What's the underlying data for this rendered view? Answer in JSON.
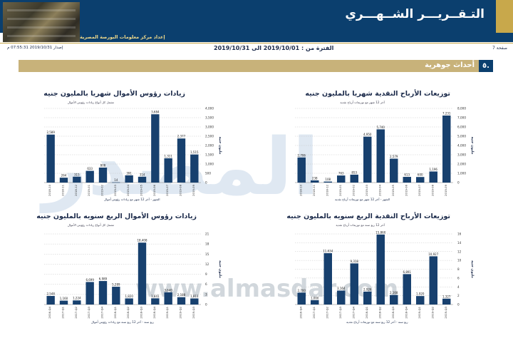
{
  "header": {
    "title": "التـقــريـــر الشــهـــري",
    "subtitle": "إعداد مركز معلومات البورصة المصرية"
  },
  "meta": {
    "page": "صفحة 7",
    "period": "الفترة من : 2019/10/01 الى 2019/10/31",
    "issue": "إصدار 2019/10/31 07:55:31 م"
  },
  "section": {
    "number": "٥.",
    "title": "أحداث جوهرية"
  },
  "watermark": {
    "text": "المصدر",
    "url": "www.almasdar.com"
  },
  "colors": {
    "navy": "#0b3f6e",
    "gold": "#c8a84b",
    "bar": "#17406e",
    "grid": "#bdbdbd"
  },
  "chart_data": [
    {
      "type": "bar",
      "title": "توزيعات الأرباح النقدية شهريا بالمليون جنيه",
      "subtitle": "آخر 12 شهر مع توزيعات أرباح نقدية",
      "xlabel": "الشهر - آخر 12 شهر مع توزيعات أرباح نقدية",
      "ylabel": "مليون جنيه",
      "ylim": [
        0,
        8000
      ],
      "yticks": [
        "0",
        "1,000",
        "2,000",
        "3,000",
        "4,000",
        "5,000",
        "6,000",
        "7,000",
        "8,000"
      ],
      "categories": [
        "2018-10",
        "2018-11",
        "2018-12",
        "2019-01",
        "2019-02",
        "2019-03",
        "2019-04",
        "2019-05",
        "2019-06",
        "2019-07",
        "2019-08",
        "2019-09"
      ],
      "values": [
        2706,
        238,
        108,
        763,
        853,
        4950,
        5740,
        2579,
        613,
        600,
        1196,
        7231
      ],
      "labels": [
        "2,706",
        "238",
        "108",
        "763",
        "853",
        "4,950",
        "5,740",
        "2,579",
        "613",
        "600",
        "1,196",
        "7,231"
      ]
    },
    {
      "type": "bar",
      "title": "زيادات رؤوس الأموال شهريا بالمليون جنيه",
      "subtitle": "تشمل كل أنواع زيادات رؤوس الأموال",
      "xlabel": "الشهر - آخر 12 شهر مع زيادات رؤوس أموال",
      "ylabel": "مليون جنيه",
      "ylim": [
        0,
        4000
      ],
      "yticks": [
        "0",
        "500",
        "1,000",
        "1,500",
        "2,000",
        "2,500",
        "3,000",
        "3,500",
        "4,000"
      ],
      "categories": [
        "2018-10",
        "2018-11",
        "2018-12",
        "2019-01",
        "2019-02",
        "2019-03",
        "2019-04",
        "2019-05",
        "2019-06",
        "2019-07",
        "2019-08",
        "2019-09"
      ],
      "values": [
        2589,
        264,
        315,
        633,
        808,
        14,
        391,
        314,
        3684,
        1311,
        2377,
        1515
      ],
      "labels": [
        "2,589",
        "264",
        "315",
        "633",
        "808",
        "14",
        "391",
        "314",
        "3,684",
        "1,311",
        "2,377",
        "1,515"
      ]
    },
    {
      "type": "bar",
      "title": "توزيعات الأرباح النقدية الربع سنويه بالمليون جنيه",
      "subtitle": "آخر 12 ربع سنة مع توزيعات أرباح نقدية",
      "xlabel": "ربع سنة - آخر 12 ربع سنة مع توزيعات أرباح نقدية",
      "ylabel": "مليون جنيه",
      "ylim": [
        0,
        16000
      ],
      "yticks": [
        "0",
        "2",
        "4",
        "6",
        "8",
        "10",
        "12",
        "14",
        "16"
      ],
      "categories": [
        "2016-Q4",
        "2017-Q1",
        "2017-Q2",
        "2017-Q3",
        "2017-Q4",
        "2018-Q1",
        "2018-Q2",
        "2018-Q3",
        "2018-Q4",
        "2019-Q1",
        "2019-Q2",
        "2019-Q3"
      ],
      "values": [
        2700,
        1000,
        11634,
        3164,
        9318,
        2926,
        15860,
        2168,
        6891,
        1920,
        10927,
        1327
      ],
      "labels": [
        "2,700",
        "1,000",
        "11,634",
        "3,164",
        "9,318",
        "2,926",
        "15,860",
        "2,168",
        "6,891",
        "1,920",
        "10,927",
        "1,327"
      ]
    },
    {
      "type": "bar",
      "title": "زيادات رؤوس الأموال الربع سنويه بالمليون جنيه",
      "subtitle": "تشمل كل أنواع زيادات رؤوس الأموال",
      "xlabel": "ربع سنة - آخر 12 ربع سنة مع زيادات رؤوس أموال",
      "ylabel": "مليون جنيه",
      "ylim": [
        0,
        21000
      ],
      "yticks": [
        "0",
        "3",
        "6",
        "9",
        "12",
        "15",
        "18",
        "21"
      ],
      "categories": [
        "2016-Q4",
        "2017-Q1",
        "2017-Q2",
        "2017-Q3",
        "2017-Q4",
        "2018-Q1",
        "2018-Q2",
        "2018-Q3",
        "2018-Q4",
        "2019-Q1",
        "2019-Q2",
        "2019-Q3"
      ],
      "values": [
        2548,
        1160,
        1224,
        6699,
        6989,
        5289,
        1820,
        18408,
        1841,
        3640,
        2188,
        1811
      ],
      "labels": [
        "2,548",
        "1,160",
        "1,224",
        "6,699",
        "6,989",
        "5,289",
        "1,820",
        "18,408",
        "1,841",
        "3,640",
        "2,188",
        "1,811"
      ]
    }
  ]
}
